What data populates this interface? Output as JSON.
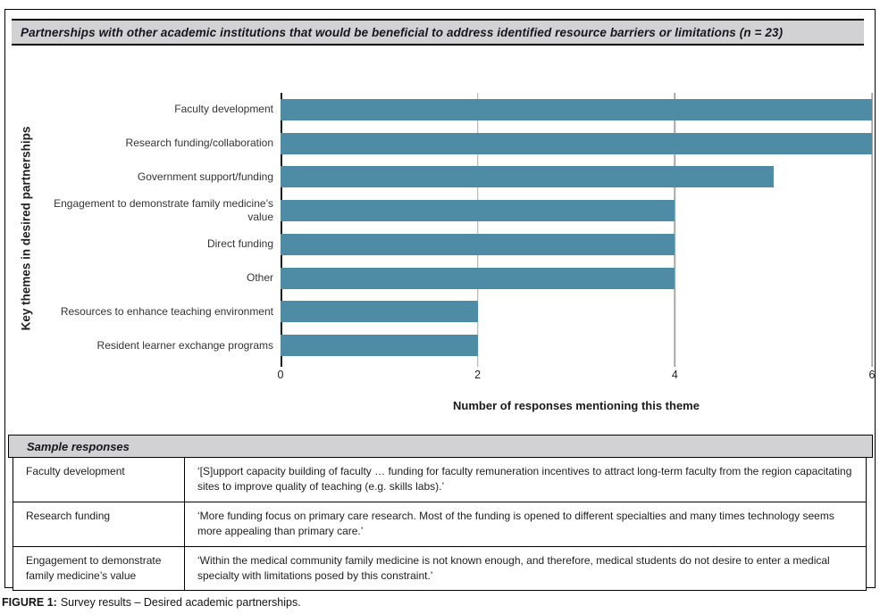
{
  "figure": {
    "panel_title": "Partnerships with other academic institutions that would be beneficial to address identified resource barriers or limitations (n = 23)",
    "caption_label": "FIGURE 1:",
    "caption_text": "Survey results – Desired academic partnerships."
  },
  "chart_data": {
    "type": "bar",
    "orientation": "horizontal",
    "categories": [
      "Faculty development",
      "Research funding/collaboration",
      "Government support/funding",
      "Engagement to demonstrate family medicine’s value",
      "Direct funding",
      "Other",
      "Resources to enhance teaching environment",
      "Resident learner exchange programs"
    ],
    "values": [
      6,
      6,
      5,
      4,
      4,
      4,
      2,
      2
    ],
    "xlabel": "Number of responses mentioning this theme",
    "ylabel": "Key themes in desired partnerships",
    "xlim": [
      0,
      6
    ],
    "xticks": [
      0,
      2,
      4,
      6
    ],
    "grid": true,
    "legend": "none",
    "bar_color": "#4e8ca6",
    "gridline_color": "#a8a8a8"
  },
  "sample_responses": {
    "header": "Sample responses",
    "rows": [
      {
        "theme": "Faculty development",
        "quote": "‘[S]upport capacity building of faculty … funding for faculty remuneration incentives to attract long-term faculty from the region capacitating sites to improve quality of teaching (e.g. skills labs).’"
      },
      {
        "theme": "Research funding",
        "quote": "‘More funding focus on primary care research. Most of the funding is opened to different specialties and many times technology seems more appealing than primary care.’"
      },
      {
        "theme": "Engagement to demonstrate family medicine’s value",
        "quote": "‘Within the medical community family medicine is not known enough, and therefore, medical students do not desire to enter a medical specialty with limitations posed by this constraint.’"
      }
    ]
  },
  "colors": {
    "panel_header_bg": "#d2d2d4",
    "bar": "#4e8ca6",
    "gridline": "#a8a8a8",
    "border": "#000000"
  }
}
